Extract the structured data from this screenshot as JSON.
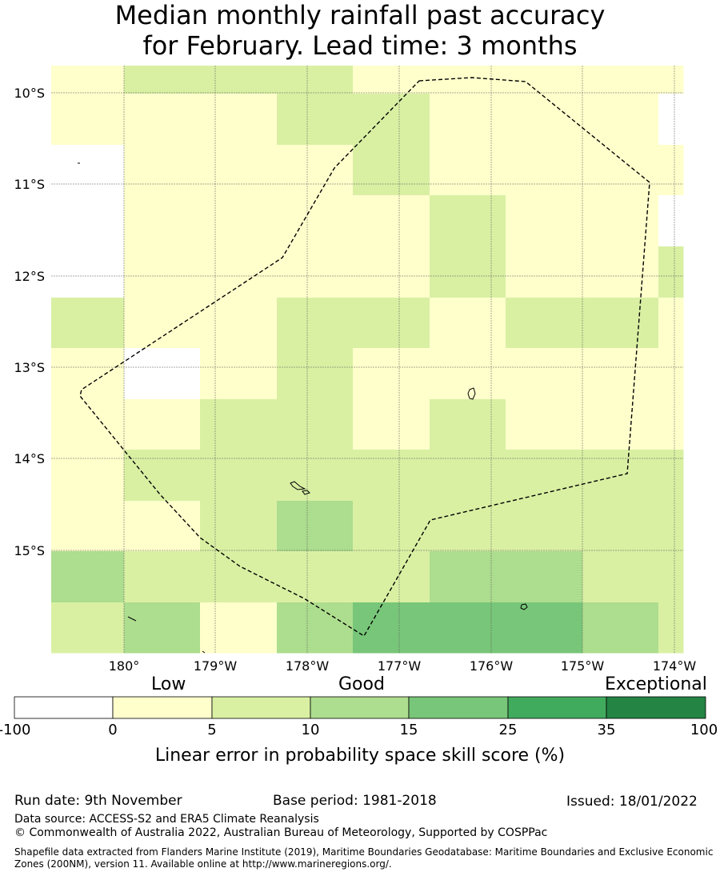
{
  "title": {
    "line1": "Median monthly rainfall past accuracy",
    "line2": "for February. Lead time: 3 months"
  },
  "map": {
    "lat_labels": [
      "10°S",
      "11°S",
      "12°S",
      "13°S",
      "14°S",
      "15°S"
    ],
    "lon_labels": [
      "180°",
      "179°W",
      "178°W",
      "177°W",
      "176°W",
      "175°W",
      "174°W"
    ],
    "legend_colors": {
      "no_skill": "#ffffff",
      "c0_5": "#ffffcc",
      "c5_10": "#d9f0a3",
      "c10_15": "#addd8e",
      "c15_25": "#78c679",
      "c25_35": "#41ab5d",
      "c35_100": "#238443"
    },
    "grid_categories": [
      [
        "c0_5",
        "c5_10",
        "c5_10",
        "c5_10",
        "c0_5",
        "c0_5",
        "c0_5",
        "c0_5",
        "c0_5"
      ],
      [
        "c0_5",
        "c0_5",
        "c0_5",
        "c5_10",
        "c5_10",
        "c0_5",
        "c0_5",
        "c0_5",
        "none"
      ],
      [
        "none",
        "c0_5",
        "c0_5",
        "c0_5",
        "c5_10",
        "c0_5",
        "c0_5",
        "c0_5",
        "c0_5"
      ],
      [
        "none",
        "c0_5",
        "c0_5",
        "c0_5",
        "c0_5",
        "c5_10",
        "c0_5",
        "c0_5",
        "none"
      ],
      [
        "none",
        "c0_5",
        "c0_5",
        "c0_5",
        "c0_5",
        "c5_10",
        "c0_5",
        "c0_5",
        "c5_10"
      ],
      [
        "c5_10",
        "c0_5",
        "c0_5",
        "c5_10",
        "c5_10",
        "c0_5",
        "c5_10",
        "c5_10",
        "c0_5"
      ],
      [
        "c0_5",
        "none",
        "c0_5",
        "c5_10",
        "c0_5",
        "c0_5",
        "c0_5",
        "c0_5",
        "c0_5"
      ],
      [
        "c0_5",
        "c0_5",
        "c5_10",
        "c5_10",
        "c0_5",
        "c5_10",
        "c0_5",
        "c0_5",
        "c0_5"
      ],
      [
        "c0_5",
        "c5_10",
        "c5_10",
        "c5_10",
        "c5_10",
        "c5_10",
        "c5_10",
        "c5_10",
        "c5_10"
      ],
      [
        "c0_5",
        "c0_5",
        "c5_10",
        "c10_15",
        "c5_10",
        "c5_10",
        "c5_10",
        "c5_10",
        "c5_10"
      ],
      [
        "c10_15",
        "c5_10",
        "c5_10",
        "c5_10",
        "c5_10",
        "c10_15",
        "c10_15",
        "c5_10",
        "c5_10"
      ],
      [
        "c5_10",
        "c10_15",
        "c0_5",
        "c10_15",
        "c15_25",
        "c15_25",
        "c15_25",
        "c10_15",
        "c5_10"
      ]
    ]
  },
  "colorbar": {
    "category_labels": [
      "Low",
      "Good",
      "Exceptional"
    ],
    "colors": [
      "#ffffff",
      "#ffffcc",
      "#d9f0a3",
      "#addd8e",
      "#78c679",
      "#41ab5d",
      "#238443"
    ],
    "ticks": [
      "-100",
      "0",
      "5",
      "10",
      "15",
      "25",
      "35",
      "100"
    ],
    "label": "Linear error in probability space skill score (%)"
  },
  "footer": {
    "run_date": "Run date: 9th November",
    "base_period": "Base period: 1981-2018",
    "issued": "Issued: 18/01/2022",
    "data_source": "Data source: ACCESS-S2 and ERA5 Climate Reanalysis",
    "copyright": "© Commonwealth of Australia 2022, Australian Bureau of Meteorology, Supported by COSPPac",
    "shapefile": "Shapefile data extracted from Flanders Marine Institute (2019), Maritime Boundaries Geodatabase: Maritime Boundaries and Exclusive Economic Zones (200NM), version 11. Available online at http://www.marineregions.org/."
  }
}
